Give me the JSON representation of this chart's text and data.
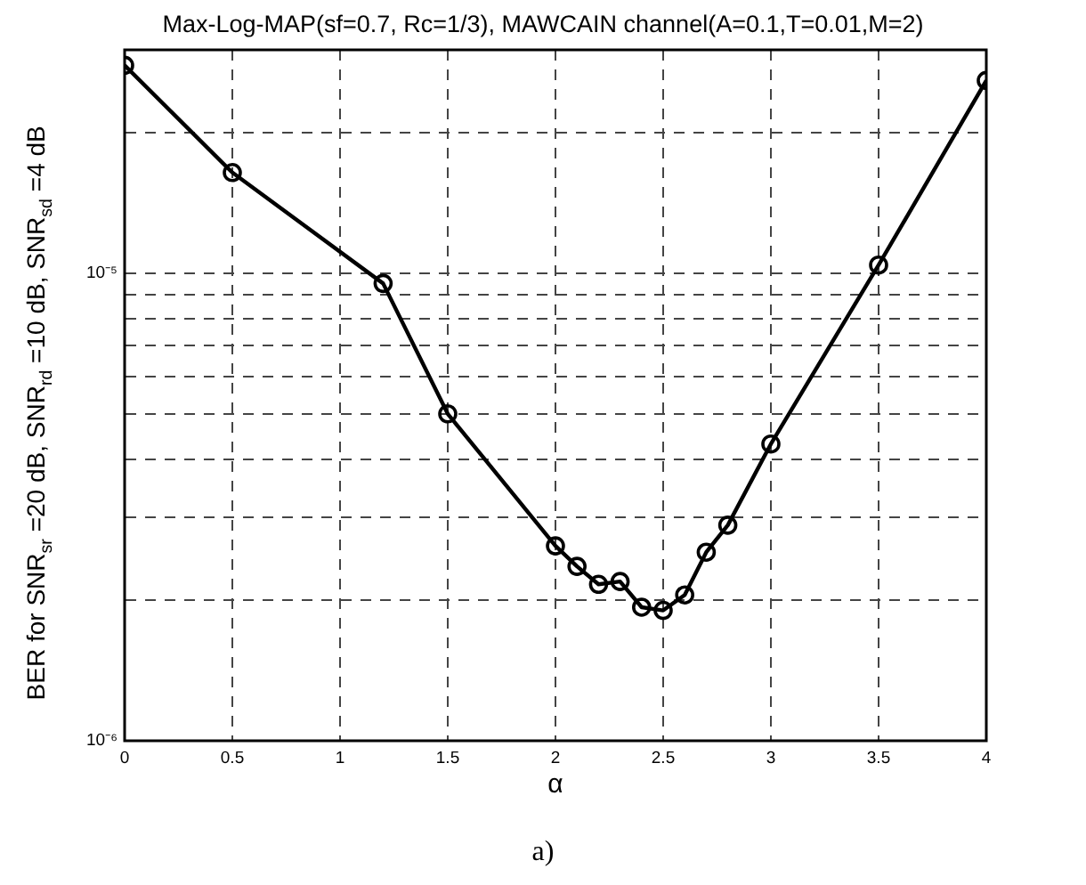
{
  "chart_data": {
    "type": "line",
    "title": "Max-Log-MAP(sf=0.7, Rc=1/3), MAWCAIN channel(A=0.1,T=0.01,M=2)",
    "xlabel": "α",
    "ylabel": "BER for SNR$_{sr}$ =20 dB, SNR$_{rd}$ =10 dB, SNR$_{sd}$ =4 dB",
    "annotations": [
      "a)"
    ],
    "x": [
      0,
      0.5,
      1.2,
      1.5,
      2,
      2.1,
      2.2,
      2.3,
      2.4,
      2.5,
      2.6,
      2.7,
      2.8,
      3,
      3.5,
      4
    ],
    "series": [
      {
        "color": "#000000",
        "values": [
          2.78e-05,
          1.64e-05,
          9.5e-06,
          5e-06,
          2.61e-06,
          2.36e-06,
          2.16e-06,
          2.19e-06,
          1.93e-06,
          1.9e-06,
          2.05e-06,
          2.53e-06,
          2.89e-06,
          4.31e-06,
          1.04e-05,
          2.58e-05
        ]
      }
    ],
    "xlim": [
      0,
      4
    ],
    "xticks": [
      0,
      0.5,
      1,
      1.5,
      2,
      2.5,
      3,
      3.5,
      4
    ],
    "ylim": [
      1e-06,
      3e-05
    ],
    "yticks": [
      {
        "value": 1e-06,
        "label": "10⁻⁶"
      },
      {
        "value": 2e-06,
        "label": null
      },
      {
        "value": 3e-06,
        "label": null
      },
      {
        "value": 4e-06,
        "label": null
      },
      {
        "value": 5e-06,
        "label": null
      },
      {
        "value": 6e-06,
        "label": null
      },
      {
        "value": 7e-06,
        "label": null
      },
      {
        "value": 8e-06,
        "label": null
      },
      {
        "value": 9e-06,
        "label": null
      },
      {
        "value": 1e-05,
        "label": "10⁻⁵"
      },
      {
        "value": 2e-05,
        "label": null
      }
    ],
    "log": true,
    "grid": true,
    "legend": false,
    "marker": "circle",
    "line_style": "solid"
  }
}
